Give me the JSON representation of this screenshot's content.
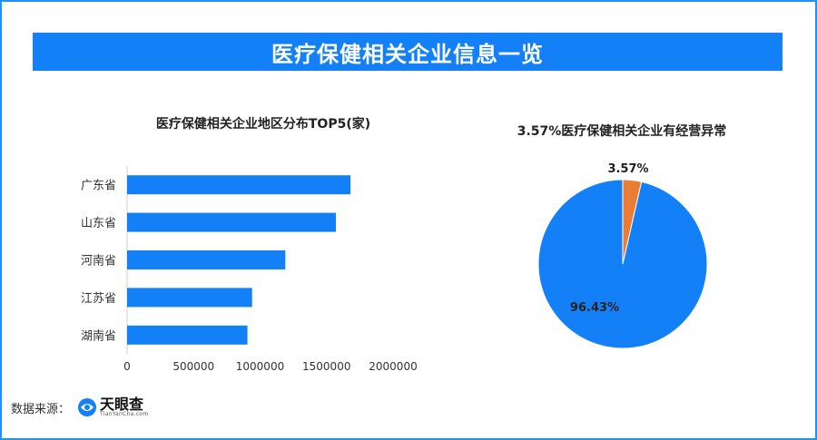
{
  "header": {
    "title": "医疗保健相关企业信息一览"
  },
  "chart_data": [
    {
      "type": "bar",
      "orientation": "horizontal",
      "title": "医疗保健相关企业地区分布TOP5(家)",
      "categories": [
        "广东省",
        "山东省",
        "河南省",
        "江苏省",
        "湖南省"
      ],
      "values": [
        1680000,
        1570000,
        1190000,
        940000,
        905000
      ],
      "xlim": [
        0,
        2000000
      ],
      "xticks": [
        "0",
        "500000",
        "1000000",
        "1500000",
        "2000000"
      ],
      "color": "#1380f8"
    },
    {
      "type": "pie",
      "title": "3.57%医疗保健相关企业有经营异常",
      "slices": [
        {
          "label": "3.57%",
          "value": 3.57,
          "color": "#ea7d36"
        },
        {
          "label": "96.43%",
          "value": 96.43,
          "color": "#1380f8"
        }
      ]
    }
  ],
  "footer": {
    "source_label": "数据来源：",
    "logo_name": "天眼查",
    "logo_en": "TianYanCha.com",
    "logo_icon": "tianyancha-logo-icon"
  }
}
